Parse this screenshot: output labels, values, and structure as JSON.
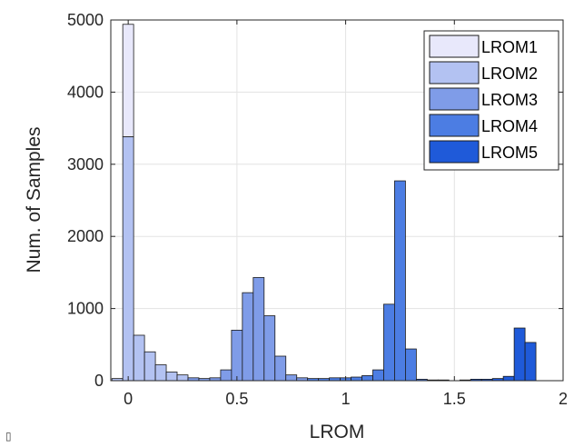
{
  "chart_data": {
    "type": "bar",
    "subtype": "stacked-histogram",
    "xlabel": "LROM",
    "ylabel": "Num. of Samples",
    "xlim": [
      -0.08,
      2.0
    ],
    "ylim": [
      0,
      5000
    ],
    "xticks": [
      0,
      0.5,
      1,
      1.5,
      2
    ],
    "xtick_labels": [
      "0",
      "0.5",
      "1",
      "1.5",
      "2"
    ],
    "yticks": [
      0,
      1000,
      2000,
      3000,
      4000,
      5000
    ],
    "ytick_labels": [
      "0",
      "1000",
      "2000",
      "3000",
      "4000",
      "5000"
    ],
    "grid": true,
    "legend_position": "top-right",
    "bin_width": 0.05,
    "series": [
      {
        "name": "LROM1",
        "color": "#e8e8fb",
        "bins": [
          {
            "x": 0.0,
            "value": 1560,
            "base": 3380
          }
        ]
      },
      {
        "name": "LROM2",
        "color": "#b3c2f2",
        "bins": [
          {
            "x": -0.05,
            "value": 30,
            "base": 0
          },
          {
            "x": 0.0,
            "value": 3380,
            "base": 0
          },
          {
            "x": 0.05,
            "value": 630,
            "base": 0
          },
          {
            "x": 0.1,
            "value": 400,
            "base": 0
          },
          {
            "x": 0.15,
            "value": 220,
            "base": 0
          },
          {
            "x": 0.2,
            "value": 120,
            "base": 0
          },
          {
            "x": 0.25,
            "value": 80,
            "base": 0
          }
        ]
      },
      {
        "name": "LROM3",
        "color": "#7f9ce8",
        "bins": [
          {
            "x": 0.3,
            "value": 40,
            "base": 0
          },
          {
            "x": 0.35,
            "value": 30,
            "base": 0
          },
          {
            "x": 0.4,
            "value": 40,
            "base": 0
          },
          {
            "x": 0.45,
            "value": 150,
            "base": 0
          },
          {
            "x": 0.5,
            "value": 700,
            "base": 0
          },
          {
            "x": 0.55,
            "value": 1220,
            "base": 0
          },
          {
            "x": 0.6,
            "value": 1430,
            "base": 0
          },
          {
            "x": 0.65,
            "value": 900,
            "base": 0
          },
          {
            "x": 0.7,
            "value": 340,
            "base": 0
          },
          {
            "x": 0.75,
            "value": 80,
            "base": 0
          },
          {
            "x": 0.8,
            "value": 40,
            "base": 0
          }
        ]
      },
      {
        "name": "LROM4",
        "color": "#4c7de3",
        "bins": [
          {
            "x": 0.85,
            "value": 30,
            "base": 0
          },
          {
            "x": 0.9,
            "value": 30,
            "base": 0
          },
          {
            "x": 0.95,
            "value": 40,
            "base": 0
          },
          {
            "x": 1.0,
            "value": 40,
            "base": 0
          },
          {
            "x": 1.05,
            "value": 50,
            "base": 0
          },
          {
            "x": 1.1,
            "value": 70,
            "base": 0
          },
          {
            "x": 1.15,
            "value": 150,
            "base": 0
          },
          {
            "x": 1.2,
            "value": 1060,
            "base": 0
          },
          {
            "x": 1.25,
            "value": 2770,
            "base": 0
          },
          {
            "x": 1.3,
            "value": 440,
            "base": 0
          },
          {
            "x": 1.35,
            "value": 20,
            "base": 0
          },
          {
            "x": 1.4,
            "value": 10,
            "base": 0
          },
          {
            "x": 1.45,
            "value": 10,
            "base": 0
          }
        ]
      },
      {
        "name": "LROM5",
        "color": "#1f5ad9",
        "bins": [
          {
            "x": 1.55,
            "value": 10,
            "base": 0
          },
          {
            "x": 1.6,
            "value": 20,
            "base": 0
          },
          {
            "x": 1.65,
            "value": 20,
            "base": 0
          },
          {
            "x": 1.7,
            "value": 30,
            "base": 0
          },
          {
            "x": 1.75,
            "value": 60,
            "base": 0
          },
          {
            "x": 1.8,
            "value": 730,
            "base": 0
          },
          {
            "x": 1.85,
            "value": 530,
            "base": 0
          }
        ]
      }
    ]
  },
  "corner_mark": "▯"
}
